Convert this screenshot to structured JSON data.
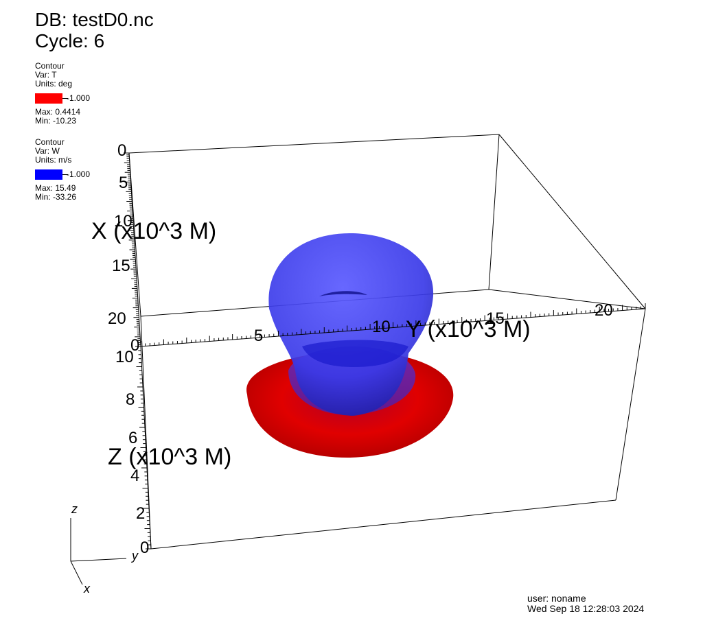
{
  "header": {
    "db": "DB: testD0.nc",
    "cycle": "Cycle: 6"
  },
  "legends": [
    {
      "plot": "Contour",
      "var": "Var: T",
      "units": "Units: deg",
      "color": "#ff0000",
      "level": "-1.000",
      "max": "Max:  0.4414",
      "min": "Min: -10.23"
    },
    {
      "plot": "Contour",
      "var": "Var: W",
      "units": "Units: m/s",
      "color": "#0000ff",
      "level": "-1.000",
      "max": "Max:  15.49",
      "min": "Min: -33.26"
    }
  ],
  "axes": {
    "x_title": "X (x10^3 M)",
    "y_title": "Y (x10^3 M)",
    "z_title": "Z (x10^3 M)",
    "x_ticks": [
      "0",
      "5",
      "10",
      "15",
      "20"
    ],
    "y_ticks": [
      "0",
      "5",
      "10",
      "15",
      "20"
    ],
    "z_ticks": [
      "0",
      "2",
      "4",
      "6",
      "8",
      "10"
    ]
  },
  "triad": {
    "z": "z",
    "y": "y",
    "x": "x"
  },
  "footer": {
    "user": "user: noname",
    "date": "Wed Sep 18 12:28:03 2024"
  }
}
